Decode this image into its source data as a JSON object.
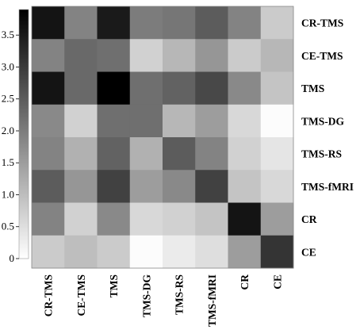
{
  "chart_data": {
    "type": "heatmap",
    "rows": [
      "CR-TMS",
      "CE-TMS",
      "TMS",
      "TMS-DG",
      "TMS-RS",
      "TMS-fMRI",
      "CR",
      "CE"
    ],
    "columns": [
      "CR-TMS",
      "CE-TMS",
      "TMS",
      "TMS-DG",
      "TMS-RS",
      "TMS-fMRI",
      "CR",
      "CE"
    ],
    "values": [
      [
        3.6,
        1.9,
        3.5,
        2.0,
        2.1,
        2.5,
        1.9,
        0.8
      ],
      [
        1.9,
        2.3,
        2.2,
        0.7,
        1.1,
        1.6,
        0.8,
        1.1
      ],
      [
        3.6,
        2.3,
        3.9,
        2.2,
        2.4,
        2.8,
        1.8,
        0.9
      ],
      [
        1.8,
        0.7,
        2.2,
        2.2,
        1.1,
        1.5,
        0.6,
        0.05
      ],
      [
        1.9,
        1.2,
        2.4,
        1.2,
        2.5,
        1.9,
        0.7,
        0.4
      ],
      [
        2.5,
        1.6,
        2.9,
        1.5,
        1.8,
        2.9,
        0.9,
        0.6
      ],
      [
        1.9,
        0.7,
        1.8,
        0.6,
        0.7,
        0.9,
        3.6,
        1.5
      ],
      [
        0.8,
        1.0,
        0.8,
        0.05,
        0.3,
        0.5,
        1.5,
        3.1
      ]
    ],
    "colorbar": {
      "min": 0,
      "max": 3.9,
      "ticks": [
        0,
        0.5,
        1.0,
        1.5,
        2.0,
        2.5,
        3.0,
        3.5
      ],
      "tick_labels": [
        "0",
        "0.5",
        "1.0",
        "1.5",
        "2.0",
        "2.5",
        "3.0",
        "3.5"
      ],
      "low_color": "#ffffff",
      "high_color": "#000000"
    }
  }
}
